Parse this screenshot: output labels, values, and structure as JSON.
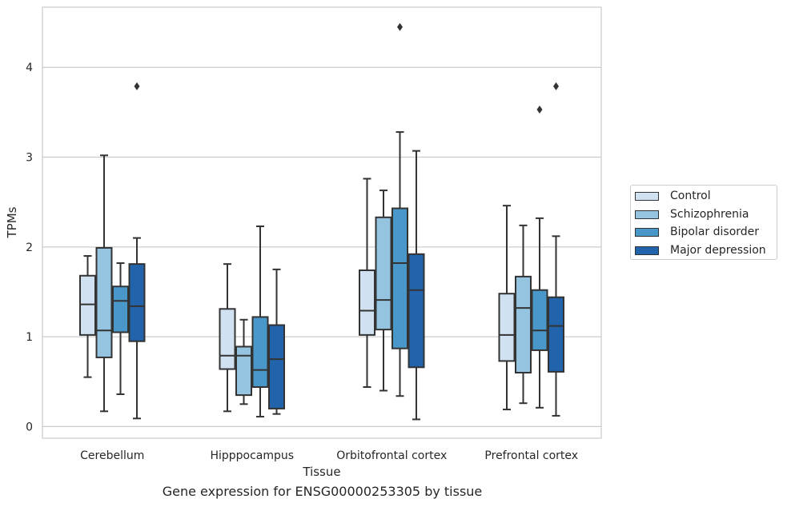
{
  "chart_data": {
    "type": "box",
    "title": "",
    "caption": "Gene expression for ENSG00000253305 by tissue",
    "xlabel": "Tissue",
    "ylabel": "TPMs",
    "ylim": [
      -0.13,
      4.67
    ],
    "yticks": [
      0,
      1,
      2,
      3,
      4
    ],
    "grid": "horizontal",
    "legend_position": "right",
    "categories": [
      "Cerebellum",
      "Hipppocampus",
      "Orbitofrontal cortex",
      "Prefrontal cortex"
    ],
    "series": [
      {
        "name": "Control",
        "color": "#d0e1f2",
        "boxes": [
          {
            "whisker_low": 0.55,
            "q1": 1.02,
            "median": 1.36,
            "q3": 1.68,
            "whisker_high": 1.9,
            "outliers": []
          },
          {
            "whisker_low": 0.17,
            "q1": 0.64,
            "median": 0.79,
            "q3": 1.31,
            "whisker_high": 1.81,
            "outliers": []
          },
          {
            "whisker_low": 0.44,
            "q1": 1.02,
            "median": 1.29,
            "q3": 1.74,
            "whisker_high": 2.76,
            "outliers": []
          },
          {
            "whisker_low": 0.19,
            "q1": 0.73,
            "median": 1.02,
            "q3": 1.48,
            "whisker_high": 2.46,
            "outliers": []
          }
        ]
      },
      {
        "name": "Schizophrenia",
        "color": "#94c4df",
        "boxes": [
          {
            "whisker_low": 0.17,
            "q1": 0.77,
            "median": 1.07,
            "q3": 1.99,
            "whisker_high": 3.02,
            "outliers": []
          },
          {
            "whisker_low": 0.25,
            "q1": 0.35,
            "median": 0.79,
            "q3": 0.89,
            "whisker_high": 1.19,
            "outliers": []
          },
          {
            "whisker_low": 0.4,
            "q1": 1.08,
            "median": 1.41,
            "q3": 2.33,
            "whisker_high": 2.63,
            "outliers": []
          },
          {
            "whisker_low": 0.26,
            "q1": 0.6,
            "median": 1.32,
            "q3": 1.67,
            "whisker_high": 2.24,
            "outliers": []
          }
        ]
      },
      {
        "name": "Bipolar disorder",
        "color": "#4a98c9",
        "boxes": [
          {
            "whisker_low": 0.36,
            "q1": 1.05,
            "median": 1.4,
            "q3": 1.56,
            "whisker_high": 1.82,
            "outliers": []
          },
          {
            "whisker_low": 0.11,
            "q1": 0.44,
            "median": 0.63,
            "q3": 1.22,
            "whisker_high": 2.23,
            "outliers": []
          },
          {
            "whisker_low": 0.34,
            "q1": 0.87,
            "median": 1.82,
            "q3": 2.43,
            "whisker_high": 3.28,
            "outliers": [
              4.45
            ]
          },
          {
            "whisker_low": 0.21,
            "q1": 0.85,
            "median": 1.07,
            "q3": 1.52,
            "whisker_high": 2.32,
            "outliers": [
              3.53
            ]
          }
        ]
      },
      {
        "name": "Major depression",
        "color": "#2164ab",
        "boxes": [
          {
            "whisker_low": 0.09,
            "q1": 0.95,
            "median": 1.34,
            "q3": 1.81,
            "whisker_high": 2.1,
            "outliers": [
              3.79
            ]
          },
          {
            "whisker_low": 0.14,
            "q1": 0.2,
            "median": 0.75,
            "q3": 1.13,
            "whisker_high": 1.75,
            "outliers": []
          },
          {
            "whisker_low": 0.08,
            "q1": 0.66,
            "median": 1.52,
            "q3": 1.92,
            "whisker_high": 3.07,
            "outliers": []
          },
          {
            "whisker_low": 0.12,
            "q1": 0.61,
            "median": 1.12,
            "q3": 1.44,
            "whisker_high": 2.12,
            "outliers": [
              3.79
            ]
          }
        ]
      }
    ]
  }
}
